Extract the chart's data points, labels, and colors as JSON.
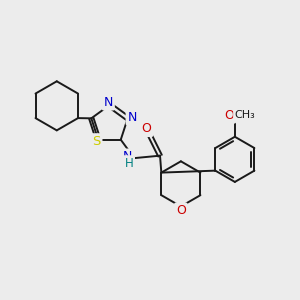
{
  "bg_color": "#ececec",
  "bond_color": "#1a1a1a",
  "bond_width": 1.4,
  "atom_colors": {
    "N": "#0000cc",
    "O": "#cc0000",
    "S": "#cccc00",
    "C": "#1a1a1a",
    "H": "#008080"
  },
  "font_size": 8.5,
  "fig_size": [
    3.0,
    3.0
  ],
  "dpi": 100,
  "xlim": [
    0,
    12
  ],
  "ylim": [
    0,
    12
  ]
}
